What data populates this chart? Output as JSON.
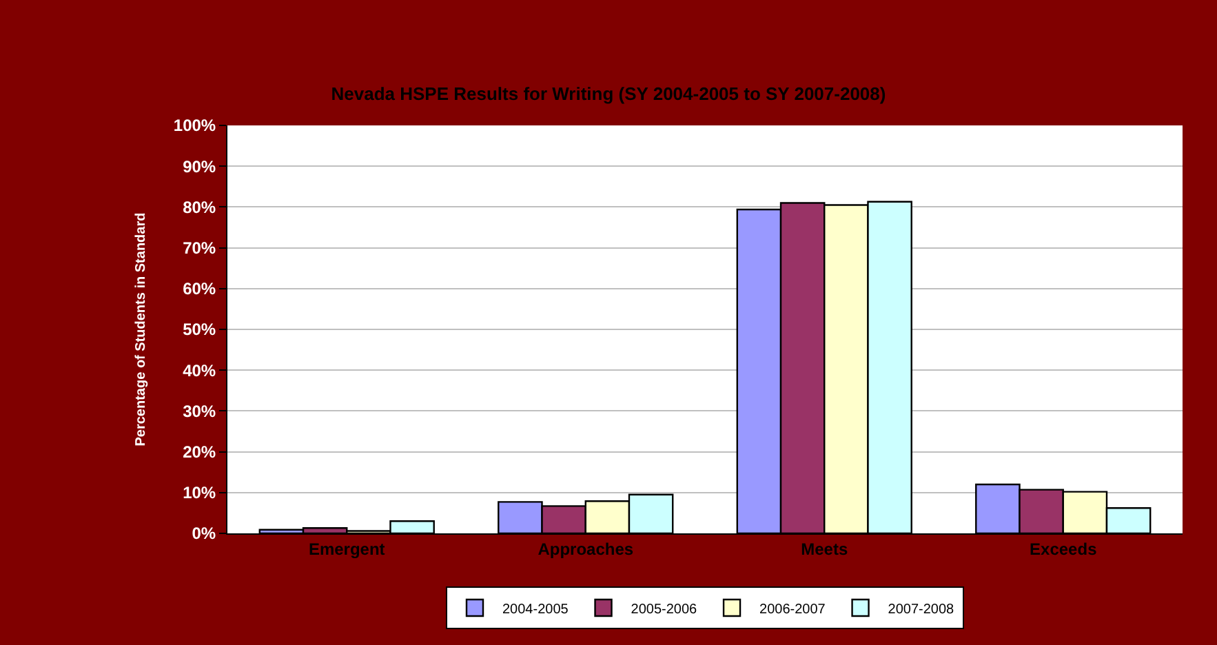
{
  "chart_data": {
    "type": "bar",
    "title": "Nevada HSPE Results for Writing (SY 2004-2005 to SY 2007-2008)",
    "ylabel": "Percentage of Students in Standard",
    "categories": [
      "Emergent",
      "Approaches",
      "Meets",
      "Exceeds"
    ],
    "series": [
      {
        "name": "2004-2005",
        "color": "#9999ff",
        "values": [
          0.9,
          7.7,
          79.4,
          12.0
        ]
      },
      {
        "name": "2005-2006",
        "color": "#993366",
        "values": [
          1.3,
          6.7,
          81.0,
          10.7
        ]
      },
      {
        "name": "2006-2007",
        "color": "#ffffcc",
        "values": [
          0.6,
          7.9,
          80.5,
          10.2
        ]
      },
      {
        "name": "2007-2008",
        "color": "#ccffff",
        "values": [
          3.0,
          9.5,
          81.3,
          6.2
        ]
      }
    ],
    "ylim": [
      0,
      100
    ],
    "yticks": [
      {
        "value": 0,
        "label": "0%"
      },
      {
        "value": 10,
        "label": "10%"
      },
      {
        "value": 20,
        "label": "20%"
      },
      {
        "value": 30,
        "label": "30%"
      },
      {
        "value": 40,
        "label": "40%"
      },
      {
        "value": 50,
        "label": "50%"
      },
      {
        "value": 60,
        "label": "60%"
      },
      {
        "value": 70,
        "label": "70%"
      },
      {
        "value": 80,
        "label": "80%"
      },
      {
        "value": 90,
        "label": "90%"
      },
      {
        "value": 100,
        "label": "100%"
      }
    ],
    "grid": "y",
    "legend": "bottom"
  }
}
